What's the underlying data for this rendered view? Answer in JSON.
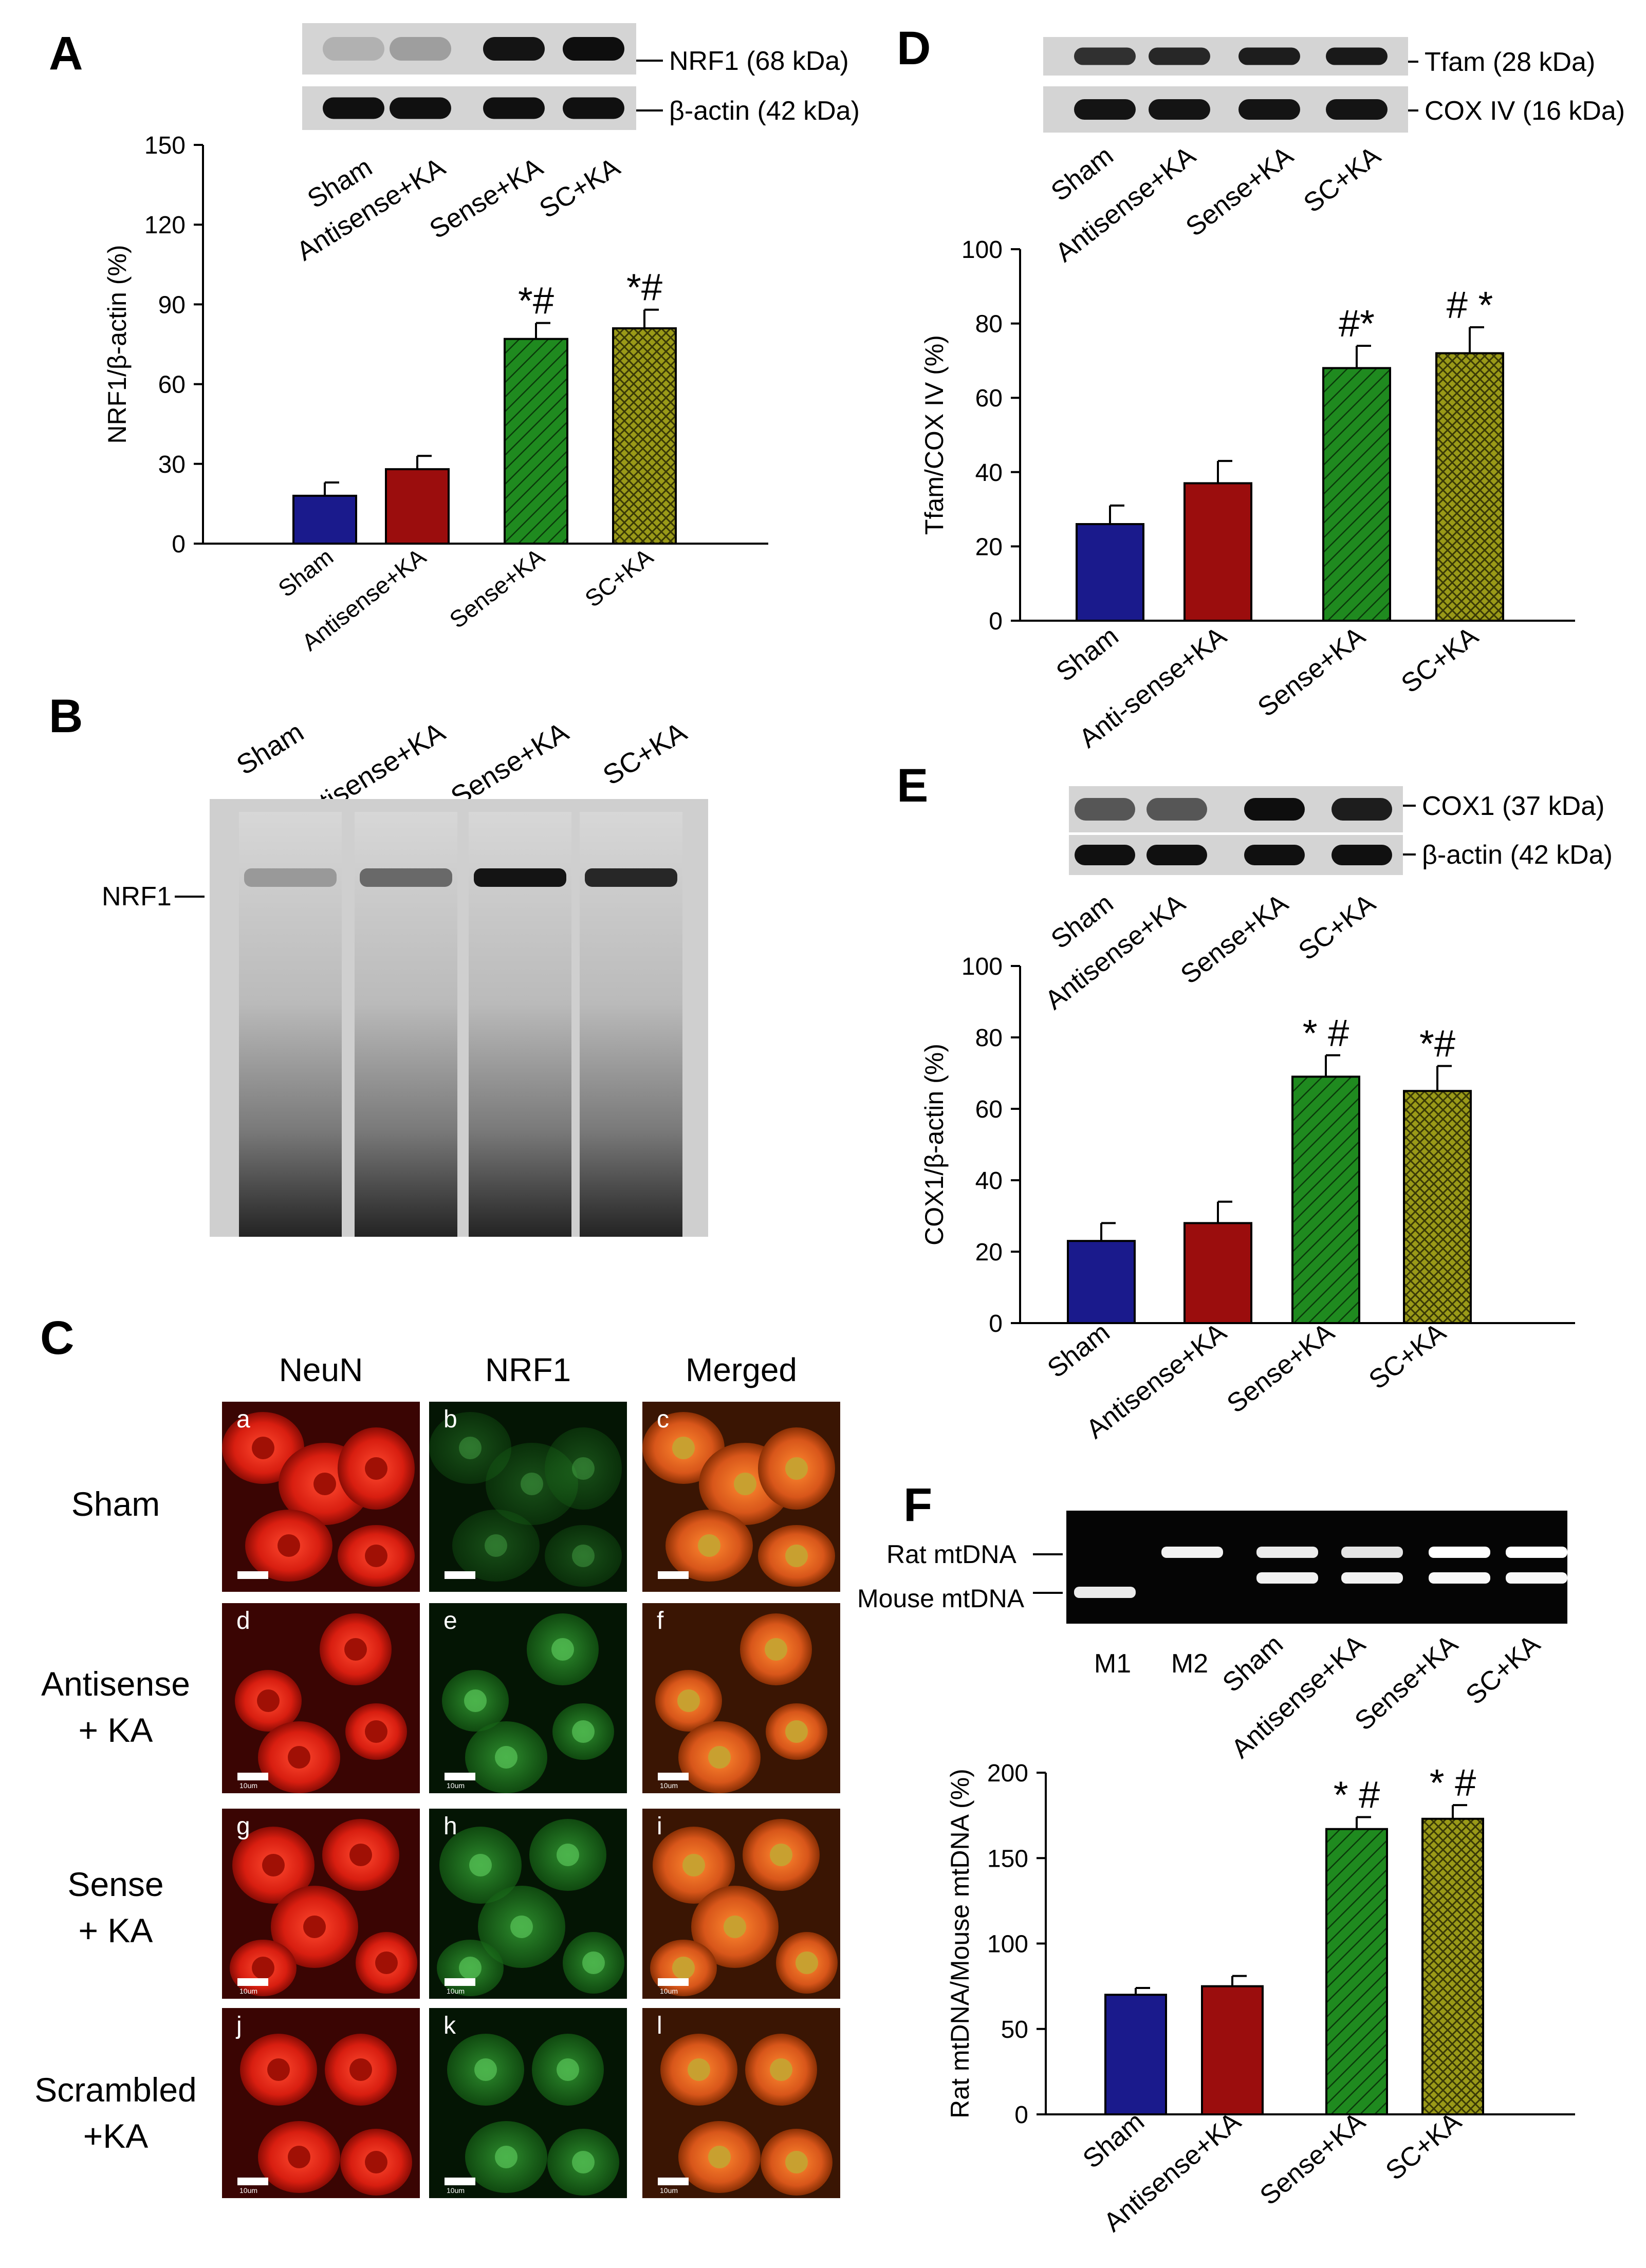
{
  "panels": {
    "A": {
      "letter": "A",
      "blot_labels": [
        "NRF1 (68 kDa)",
        "β-actin (42 kDa)"
      ],
      "blot_top_intensity": [
        0.12,
        0.22,
        0.95,
        0.98
      ],
      "blot_bottom_intensity": [
        0.97,
        0.97,
        0.97,
        0.97
      ],
      "lane_labels": [
        "Sham",
        "Antisense+KA",
        "Sense+KA",
        "SC+KA"
      ]
    },
    "B": {
      "letter": "B",
      "lane_labels": [
        "Sham",
        "Antisense+KA",
        "Sense+KA",
        "SC+KA"
      ],
      "band_label": "NRF1",
      "band_intensity": [
        0.25,
        0.5,
        0.95,
        0.85
      ]
    },
    "C": {
      "letter": "C",
      "column_headers": [
        "NeuN",
        "NRF1",
        "Merged"
      ],
      "row_labels": [
        [
          "Sham"
        ],
        [
          "Antisense",
          "+ KA"
        ],
        [
          "Sense",
          "+ KA"
        ],
        [
          "Scrambled",
          "+KA"
        ]
      ],
      "cell_letters": [
        "a",
        "b",
        "c",
        "d",
        "e",
        "f",
        "g",
        "h",
        "i",
        "j",
        "k",
        "l"
      ],
      "scale_bar_text": "10um"
    },
    "D": {
      "letter": "D",
      "blot_labels": [
        "Tfam (28 kDa)",
        "COX IV (16 kDa)"
      ],
      "blot_top_intensity": [
        0.8,
        0.85,
        0.9,
        0.92
      ],
      "blot_bottom_intensity": [
        0.95,
        0.95,
        0.95,
        0.95
      ],
      "lane_labels": [
        "Sham",
        "Antisense+KA",
        "Sense+KA",
        "SC+KA"
      ]
    },
    "E": {
      "letter": "E",
      "blot_labels": [
        "COX1 (37 kDa)",
        "β-actin (42 kDa)"
      ],
      "blot_top_intensity": [
        0.6,
        0.6,
        0.98,
        0.9
      ],
      "blot_bottom_intensity": [
        0.97,
        0.97,
        0.97,
        0.97
      ],
      "lane_labels": [
        "Sham",
        "Antisense+KA",
        "Sense+KA",
        "SC+KA"
      ]
    },
    "F": {
      "letter": "F",
      "gel_row_labels": [
        "Rat mtDNA",
        "Mouse mtDNA"
      ],
      "lane_labels": [
        "M1",
        "M2",
        "Sham",
        "Antisense+KA",
        "Sense+KA",
        "SC+KA"
      ],
      "rat_band_intensity": [
        0,
        0.9,
        0.85,
        0.8,
        1.0,
        1.0
      ],
      "mouse_band_intensity": [
        0.85,
        0,
        0.9,
        0.9,
        0.95,
        0.95
      ]
    }
  },
  "chart_data": [
    {
      "panel": "A",
      "type": "bar",
      "categories": [
        "Sham",
        "Antisense+KA",
        "Sense+KA",
        "SC+KA"
      ],
      "values": [
        18,
        28,
        77,
        81
      ],
      "errors": [
        5,
        5,
        6,
        7
      ],
      "annotations": [
        "",
        "",
        "*#",
        "*#"
      ],
      "ylabel": "NRF1/β-actin (%)",
      "ylim": [
        0,
        150
      ],
      "yticks": [
        0,
        30,
        60,
        90,
        120,
        150
      ],
      "grid": false
    },
    {
      "panel": "D",
      "type": "bar",
      "categories": [
        "Sham",
        "Anti-sense+KA",
        "Sense+KA",
        "SC+KA"
      ],
      "values": [
        26,
        37,
        68,
        72
      ],
      "errors": [
        5,
        6,
        6,
        7
      ],
      "annotations": [
        "",
        "",
        "#*",
        "# *"
      ],
      "ylabel": "Tfam/COX IV (%)",
      "ylim": [
        0,
        100
      ],
      "yticks": [
        0,
        20,
        40,
        60,
        80,
        100
      ],
      "grid": false
    },
    {
      "panel": "E",
      "type": "bar",
      "categories": [
        "Sham",
        "Antisense+KA",
        "Sense+KA",
        "SC+KA"
      ],
      "values": [
        23,
        28,
        69,
        65
      ],
      "errors": [
        5,
        6,
        6,
        7
      ],
      "annotations": [
        "",
        "",
        "* #",
        "*#"
      ],
      "ylabel": "COX1/β-actin (%)",
      "ylim": [
        0,
        100
      ],
      "yticks": [
        0,
        20,
        40,
        60,
        80,
        100
      ],
      "grid": false
    },
    {
      "panel": "F",
      "type": "bar",
      "categories": [
        "Sham",
        "Antisense+KA",
        "Sense+KA",
        "SC+KA"
      ],
      "values": [
        70,
        75,
        167,
        173
      ],
      "errors": [
        4,
        6,
        7,
        8
      ],
      "annotations": [
        "",
        "",
        "* #",
        "* #"
      ],
      "ylabel": "Rat mtDNA/Mouse mtDNA (%)",
      "ylim": [
        0,
        200
      ],
      "yticks": [
        0,
        50,
        100,
        150,
        200
      ],
      "grid": false
    }
  ],
  "colors": {
    "sham": "#1a1a8c",
    "antisense": "#9b0d0d",
    "sense": "#1f8a1f",
    "sc": "#9a9a18"
  }
}
